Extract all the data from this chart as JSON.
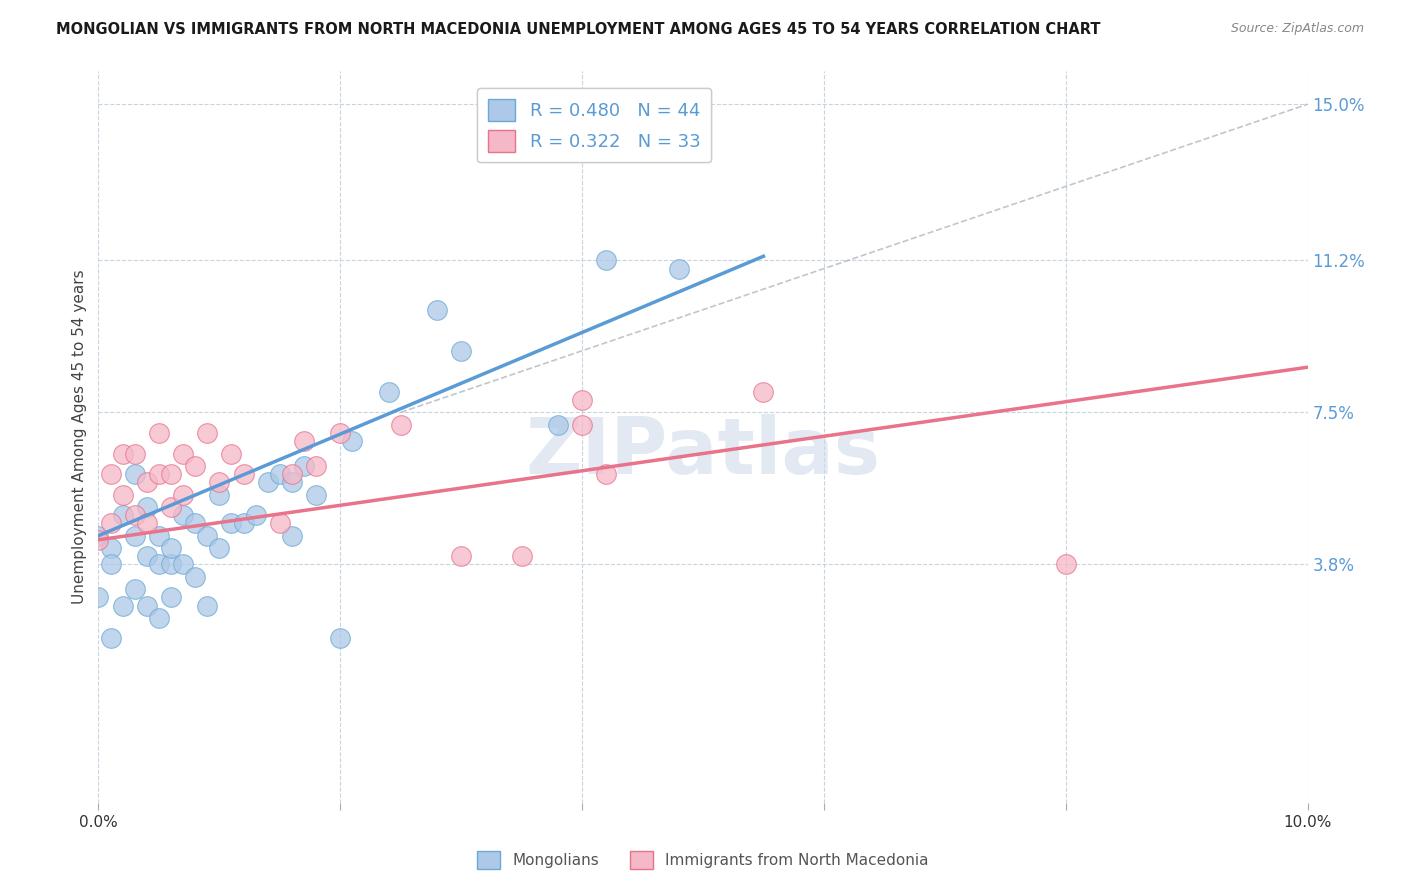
{
  "title": "MONGOLIAN VS IMMIGRANTS FROM NORTH MACEDONIA UNEMPLOYMENT AMONG AGES 45 TO 54 YEARS CORRELATION CHART",
  "source": "Source: ZipAtlas.com",
  "ylabel": "Unemployment Among Ages 45 to 54 years",
  "xlim": [
    0.0,
    0.1
  ],
  "ylim": [
    -0.02,
    0.158
  ],
  "right_yticks": [
    0.038,
    0.075,
    0.112,
    0.15
  ],
  "right_yticklabels": [
    "3.8%",
    "7.5%",
    "11.2%",
    "15.0%"
  ],
  "xticks": [
    0.0,
    0.02,
    0.04,
    0.06,
    0.08,
    0.1
  ],
  "xticklabels": [
    "0.0%",
    "",
    "",
    "",
    "",
    "10.0%"
  ],
  "blue_R": "0.480",
  "blue_N": "44",
  "pink_R": "0.322",
  "pink_N": "33",
  "blue_color": "#adc8e8",
  "blue_edge_color": "#6aaad4",
  "pink_color": "#f5b8c8",
  "pink_edge_color": "#e8728a",
  "blue_line_color": "#5b9bd5",
  "pink_line_color": "#e8738a",
  "watermark_color": "#ccd8e8",
  "background_color": "#ffffff",
  "grid_color": "#c8d4e0",
  "blue_trend_x0": 0.0,
  "blue_trend_y0": 0.045,
  "blue_trend_x1": 0.055,
  "blue_trend_y1": 0.113,
  "pink_trend_x0": 0.0,
  "pink_trend_y0": 0.044,
  "pink_trend_x1": 0.1,
  "pink_trend_y1": 0.086,
  "ref_line_x0": 0.025,
  "ref_line_y0": 0.075,
  "ref_line_x1": 0.1,
  "ref_line_y1": 0.15,
  "mongolian_scatter_x": [
    0.0,
    0.0,
    0.001,
    0.001,
    0.001,
    0.002,
    0.002,
    0.003,
    0.003,
    0.003,
    0.004,
    0.004,
    0.004,
    0.005,
    0.005,
    0.005,
    0.006,
    0.006,
    0.006,
    0.007,
    0.007,
    0.008,
    0.008,
    0.009,
    0.009,
    0.01,
    0.01,
    0.011,
    0.012,
    0.013,
    0.014,
    0.015,
    0.016,
    0.016,
    0.017,
    0.018,
    0.02,
    0.021,
    0.024,
    0.028,
    0.03,
    0.038,
    0.042,
    0.048
  ],
  "mongolian_scatter_y": [
    0.045,
    0.03,
    0.042,
    0.038,
    0.02,
    0.05,
    0.028,
    0.06,
    0.045,
    0.032,
    0.052,
    0.04,
    0.028,
    0.045,
    0.038,
    0.025,
    0.038,
    0.042,
    0.03,
    0.05,
    0.038,
    0.048,
    0.035,
    0.045,
    0.028,
    0.055,
    0.042,
    0.048,
    0.048,
    0.05,
    0.058,
    0.06,
    0.058,
    0.045,
    0.062,
    0.055,
    0.02,
    0.068,
    0.08,
    0.1,
    0.09,
    0.072,
    0.112,
    0.11
  ],
  "macedonia_scatter_x": [
    0.0,
    0.001,
    0.001,
    0.002,
    0.002,
    0.003,
    0.003,
    0.004,
    0.004,
    0.005,
    0.005,
    0.006,
    0.006,
    0.007,
    0.007,
    0.008,
    0.009,
    0.01,
    0.011,
    0.012,
    0.015,
    0.016,
    0.017,
    0.018,
    0.02,
    0.025,
    0.03,
    0.035,
    0.04,
    0.04,
    0.042,
    0.055,
    0.08
  ],
  "macedonia_scatter_y": [
    0.044,
    0.06,
    0.048,
    0.055,
    0.065,
    0.05,
    0.065,
    0.048,
    0.058,
    0.06,
    0.07,
    0.052,
    0.06,
    0.055,
    0.065,
    0.062,
    0.07,
    0.058,
    0.065,
    0.06,
    0.048,
    0.06,
    0.068,
    0.062,
    0.07,
    0.072,
    0.04,
    0.04,
    0.078,
    0.072,
    0.06,
    0.08,
    0.038
  ],
  "bottom_legend_blue": "Mongolians",
  "bottom_legend_pink": "Immigrants from North Macedonia"
}
